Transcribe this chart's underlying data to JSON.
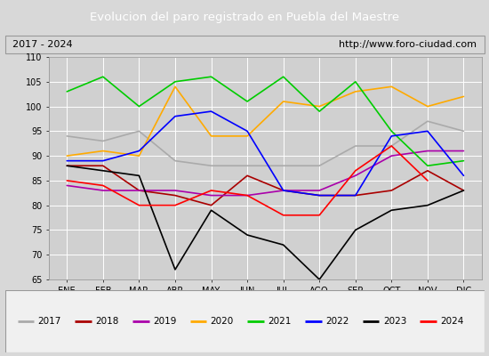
{
  "title": "Evolucion del paro registrado en Puebla del Maestre",
  "subtitle_left": "2017 - 2024",
  "subtitle_right": "http://www.foro-ciudad.com",
  "months": [
    "ENE",
    "FEB",
    "MAR",
    "ABR",
    "MAY",
    "JUN",
    "JUL",
    "AGO",
    "SEP",
    "OCT",
    "NOV",
    "DIC"
  ],
  "series": {
    "2017": [
      94,
      93,
      95,
      89,
      88,
      88,
      88,
      88,
      92,
      92,
      97,
      95
    ],
    "2018": [
      88,
      88,
      83,
      82,
      80,
      86,
      83,
      82,
      82,
      83,
      87,
      83
    ],
    "2019": [
      84,
      83,
      83,
      83,
      82,
      82,
      83,
      83,
      86,
      90,
      91,
      91
    ],
    "2020": [
      90,
      91,
      90,
      104,
      94,
      94,
      101,
      100,
      103,
      104,
      100,
      102
    ],
    "2021": [
      103,
      106,
      100,
      105,
      106,
      101,
      106,
      99,
      105,
      95,
      88,
      89
    ],
    "2022": [
      89,
      89,
      91,
      98,
      99,
      95,
      83,
      82,
      82,
      94,
      95,
      86
    ],
    "2023": [
      88,
      87,
      86,
      67,
      79,
      74,
      72,
      65,
      75,
      79,
      80,
      83
    ],
    "2024": [
      85,
      84,
      80,
      80,
      83,
      82,
      78,
      78,
      87,
      92,
      85,
      null
    ]
  },
  "colors": {
    "2017": "#aaaaaa",
    "2018": "#aa0000",
    "2019": "#aa00aa",
    "2020": "#ffaa00",
    "2021": "#00cc00",
    "2022": "#0000ff",
    "2023": "#000000",
    "2024": "#ff0000"
  },
  "ylim": [
    65,
    110
  ],
  "yticks": [
    65,
    70,
    75,
    80,
    85,
    90,
    95,
    100,
    105,
    110
  ],
  "background_color": "#d8d8d8",
  "title_bg": "#4472c4",
  "title_color": "#ffffff",
  "plot_bg": "#d0d0d0",
  "grid_color": "#ffffff",
  "legend_bg": "#f0f0f0"
}
